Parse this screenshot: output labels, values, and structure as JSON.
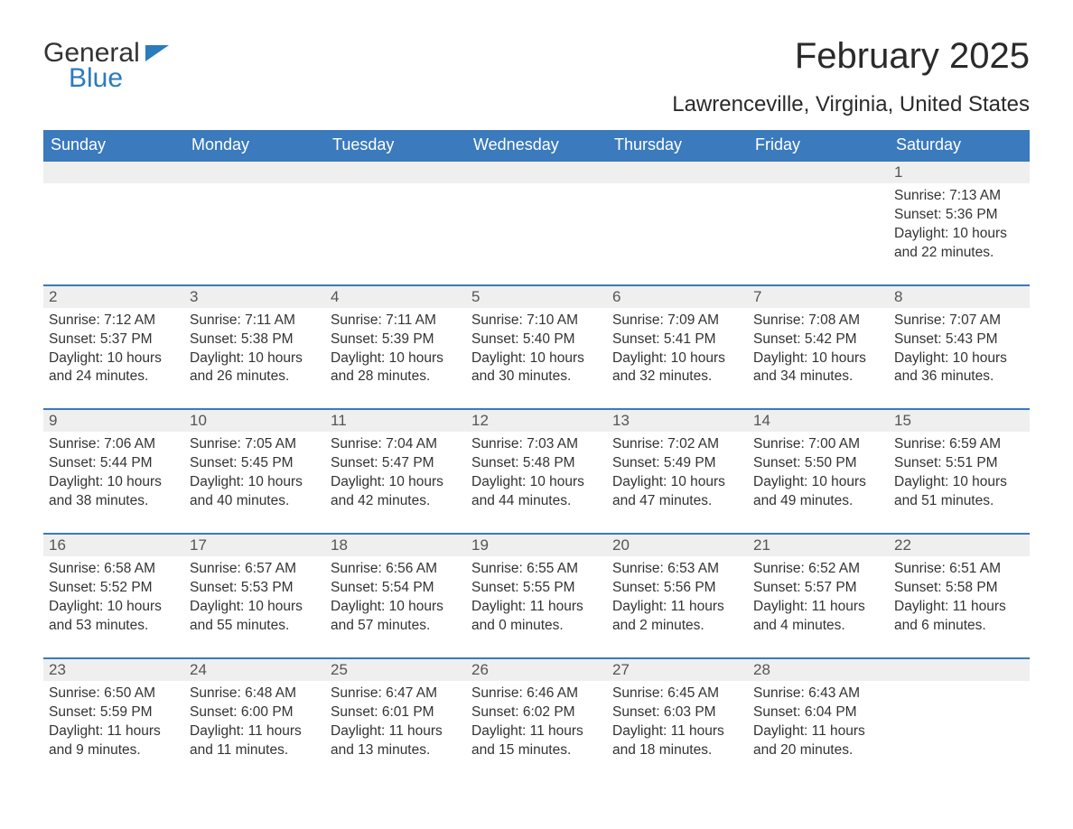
{
  "logo": {
    "part1": "General",
    "part2": "Blue"
  },
  "title": "February 2025",
  "location": "Lawrenceville, Virginia, United States",
  "colors": {
    "header_bg": "#3a7abd",
    "header_text": "#ffffff",
    "daynum_bg": "#efefef",
    "week_border": "#3a7abd",
    "body_text": "#333333",
    "logo_accent": "#2b7bbd",
    "page_bg": "#ffffff"
  },
  "calendar": {
    "type": "table",
    "columns": [
      "Sunday",
      "Monday",
      "Tuesday",
      "Wednesday",
      "Thursday",
      "Friday",
      "Saturday"
    ],
    "col_count": 7,
    "header_fontsize": 18,
    "daynum_fontsize": 17,
    "info_fontsize": 15.5,
    "weeks": [
      [
        null,
        null,
        null,
        null,
        null,
        null,
        {
          "n": "1",
          "sr": "7:13 AM",
          "ss": "5:36 PM",
          "dl": "10 hours and 22 minutes."
        }
      ],
      [
        {
          "n": "2",
          "sr": "7:12 AM",
          "ss": "5:37 PM",
          "dl": "10 hours and 24 minutes."
        },
        {
          "n": "3",
          "sr": "7:11 AM",
          "ss": "5:38 PM",
          "dl": "10 hours and 26 minutes."
        },
        {
          "n": "4",
          "sr": "7:11 AM",
          "ss": "5:39 PM",
          "dl": "10 hours and 28 minutes."
        },
        {
          "n": "5",
          "sr": "7:10 AM",
          "ss": "5:40 PM",
          "dl": "10 hours and 30 minutes."
        },
        {
          "n": "6",
          "sr": "7:09 AM",
          "ss": "5:41 PM",
          "dl": "10 hours and 32 minutes."
        },
        {
          "n": "7",
          "sr": "7:08 AM",
          "ss": "5:42 PM",
          "dl": "10 hours and 34 minutes."
        },
        {
          "n": "8",
          "sr": "7:07 AM",
          "ss": "5:43 PM",
          "dl": "10 hours and 36 minutes."
        }
      ],
      [
        {
          "n": "9",
          "sr": "7:06 AM",
          "ss": "5:44 PM",
          "dl": "10 hours and 38 minutes."
        },
        {
          "n": "10",
          "sr": "7:05 AM",
          "ss": "5:45 PM",
          "dl": "10 hours and 40 minutes."
        },
        {
          "n": "11",
          "sr": "7:04 AM",
          "ss": "5:47 PM",
          "dl": "10 hours and 42 minutes."
        },
        {
          "n": "12",
          "sr": "7:03 AM",
          "ss": "5:48 PM",
          "dl": "10 hours and 44 minutes."
        },
        {
          "n": "13",
          "sr": "7:02 AM",
          "ss": "5:49 PM",
          "dl": "10 hours and 47 minutes."
        },
        {
          "n": "14",
          "sr": "7:00 AM",
          "ss": "5:50 PM",
          "dl": "10 hours and 49 minutes."
        },
        {
          "n": "15",
          "sr": "6:59 AM",
          "ss": "5:51 PM",
          "dl": "10 hours and 51 minutes."
        }
      ],
      [
        {
          "n": "16",
          "sr": "6:58 AM",
          "ss": "5:52 PM",
          "dl": "10 hours and 53 minutes."
        },
        {
          "n": "17",
          "sr": "6:57 AM",
          "ss": "5:53 PM",
          "dl": "10 hours and 55 minutes."
        },
        {
          "n": "18",
          "sr": "6:56 AM",
          "ss": "5:54 PM",
          "dl": "10 hours and 57 minutes."
        },
        {
          "n": "19",
          "sr": "6:55 AM",
          "ss": "5:55 PM",
          "dl": "11 hours and 0 minutes."
        },
        {
          "n": "20",
          "sr": "6:53 AM",
          "ss": "5:56 PM",
          "dl": "11 hours and 2 minutes."
        },
        {
          "n": "21",
          "sr": "6:52 AM",
          "ss": "5:57 PM",
          "dl": "11 hours and 4 minutes."
        },
        {
          "n": "22",
          "sr": "6:51 AM",
          "ss": "5:58 PM",
          "dl": "11 hours and 6 minutes."
        }
      ],
      [
        {
          "n": "23",
          "sr": "6:50 AM",
          "ss": "5:59 PM",
          "dl": "11 hours and 9 minutes."
        },
        {
          "n": "24",
          "sr": "6:48 AM",
          "ss": "6:00 PM",
          "dl": "11 hours and 11 minutes."
        },
        {
          "n": "25",
          "sr": "6:47 AM",
          "ss": "6:01 PM",
          "dl": "11 hours and 13 minutes."
        },
        {
          "n": "26",
          "sr": "6:46 AM",
          "ss": "6:02 PM",
          "dl": "11 hours and 15 minutes."
        },
        {
          "n": "27",
          "sr": "6:45 AM",
          "ss": "6:03 PM",
          "dl": "11 hours and 18 minutes."
        },
        {
          "n": "28",
          "sr": "6:43 AM",
          "ss": "6:04 PM",
          "dl": "11 hours and 20 minutes."
        },
        null
      ]
    ]
  },
  "labels": {
    "sunrise": "Sunrise: ",
    "sunset": "Sunset: ",
    "daylight": "Daylight: "
  }
}
